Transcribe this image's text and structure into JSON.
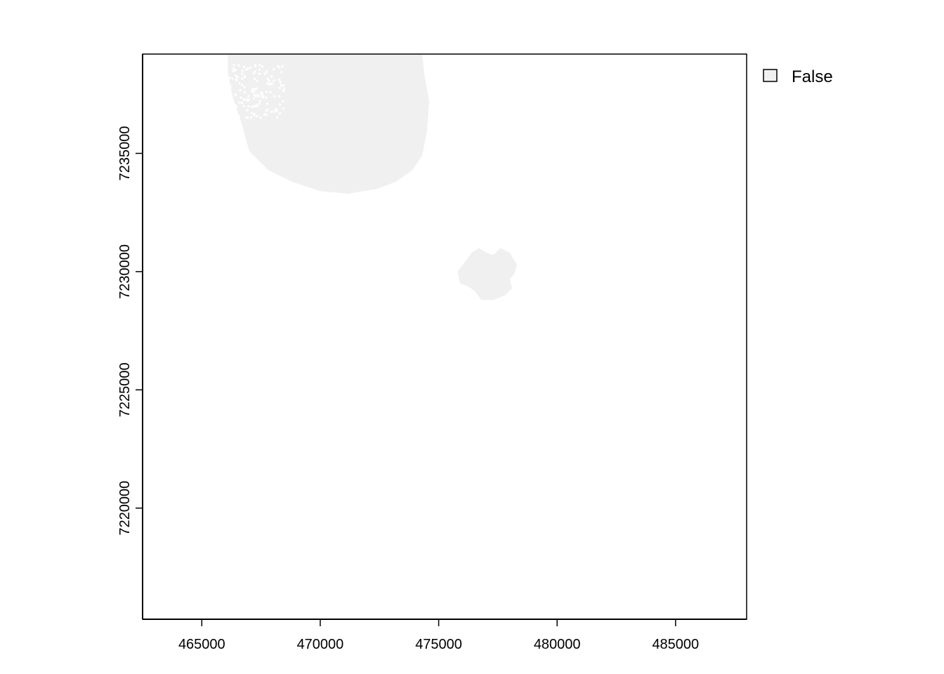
{
  "chart_data": {
    "type": "heatmap",
    "subtype": "raster-map",
    "title": "",
    "xlabel": "",
    "ylabel": "",
    "xlim": [
      462500,
      488000
    ],
    "ylim": [
      7215300,
      7239200
    ],
    "x_ticks": [
      465000,
      470000,
      475000,
      480000,
      485000
    ],
    "x_tick_labels": [
      "465000",
      "470000",
      "475000",
      "480000",
      "485000"
    ],
    "y_ticks": [
      7220000,
      7225000,
      7230000,
      7235000
    ],
    "y_tick_labels": [
      "7220000",
      "7225000",
      "7230000",
      "7235000"
    ],
    "grid": false,
    "legend": {
      "placement": "top-right outside plot",
      "entries": [
        {
          "label": "False",
          "color": "#f0f0f0"
        }
      ]
    },
    "regions": [
      {
        "name": "north-west-patch",
        "class": "False",
        "outline": [
          [
            466100,
            7239200
          ],
          [
            474300,
            7239200
          ],
          [
            474400,
            7238300
          ],
          [
            474600,
            7237200
          ],
          [
            474500,
            7235900
          ],
          [
            474300,
            7234900
          ],
          [
            473900,
            7234300
          ],
          [
            473200,
            7233800
          ],
          [
            472400,
            7233500
          ],
          [
            471200,
            7233300
          ],
          [
            470000,
            7233400
          ],
          [
            468800,
            7233800
          ],
          [
            467800,
            7234300
          ],
          [
            467000,
            7235100
          ],
          [
            466700,
            7236200
          ],
          [
            466300,
            7237400
          ],
          [
            466100,
            7238400
          ]
        ],
        "speckle_area": [
          466100,
          7236500,
          468500,
          7238800
        ]
      },
      {
        "name": "central-patch",
        "class": "False",
        "outline": [
          [
            476100,
            7230400
          ],
          [
            476400,
            7230800
          ],
          [
            476700,
            7231000
          ],
          [
            477000,
            7230800
          ],
          [
            477300,
            7230700
          ],
          [
            477600,
            7231000
          ],
          [
            478000,
            7230800
          ],
          [
            478300,
            7230300
          ],
          [
            478200,
            7229900
          ],
          [
            478000,
            7229700
          ],
          [
            478100,
            7229300
          ],
          [
            477800,
            7229000
          ],
          [
            477300,
            7228800
          ],
          [
            476800,
            7228800
          ],
          [
            476500,
            7229200
          ],
          [
            476200,
            7229400
          ],
          [
            475900,
            7229500
          ],
          [
            475800,
            7230000
          ]
        ]
      }
    ]
  }
}
